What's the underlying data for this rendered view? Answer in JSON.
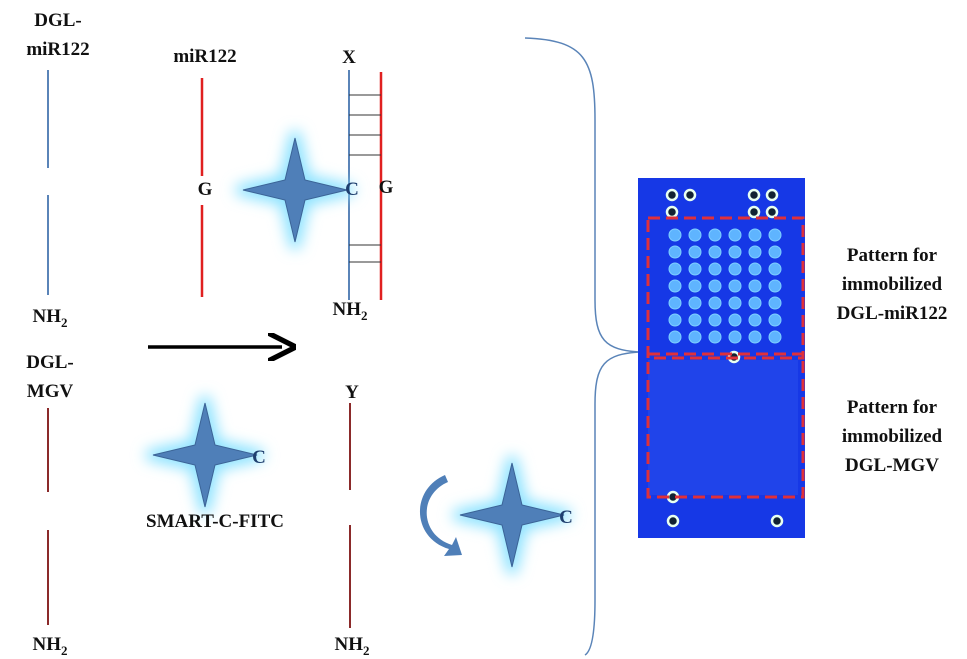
{
  "dgl_mir122": {
    "label": [
      "DGL-",
      "miR122"
    ],
    "terminus": {
      "base": "NH",
      "sub": "2"
    }
  },
  "mir122": {
    "label": "miR122",
    "base": "G"
  },
  "duplex_top": {
    "label": "X",
    "probe_base": "C",
    "target_base": "G",
    "terminus": {
      "base": "NH",
      "sub": "2"
    }
  },
  "dgl_mgv": {
    "label": [
      "DGL-",
      "MGV"
    ],
    "terminus": {
      "base": "NH",
      "sub": "2"
    }
  },
  "smart_probe": {
    "base": "C",
    "label": "SMART-C-FITC"
  },
  "duplex_bottom": {
    "label": "Y",
    "terminus": {
      "base": "NH",
      "sub": "2"
    }
  },
  "free_probe": {
    "base": "C"
  },
  "pattern_top": {
    "label": [
      "Pattern for",
      "immobilized",
      "DGL-miR122"
    ]
  },
  "pattern_bottom": {
    "label": [
      "Pattern for",
      "immobilized",
      "DGL-MGV"
    ]
  }
}
